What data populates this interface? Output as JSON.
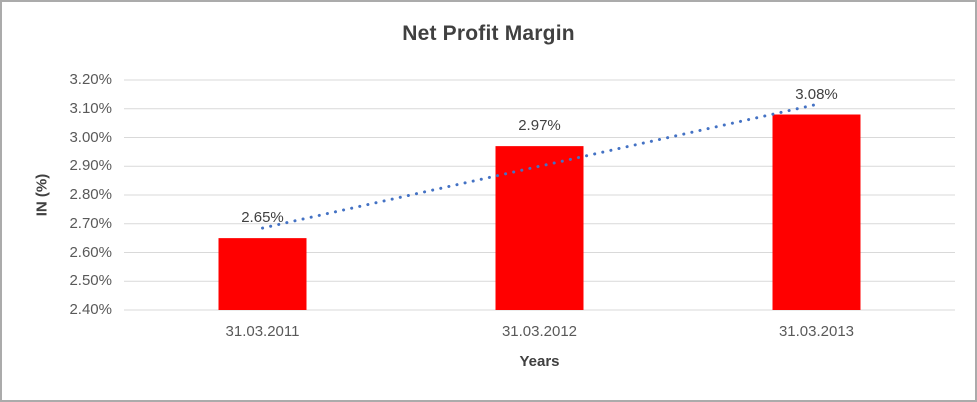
{
  "chart_data": {
    "type": "bar",
    "title": "Net Profit Margin",
    "xlabel": "Years",
    "ylabel": "IN (%)",
    "categories": [
      "31.03.2011",
      "31.03.2012",
      "31.03.2013"
    ],
    "values": [
      2.65,
      2.97,
      3.08
    ],
    "data_labels": [
      "2.65%",
      "2.97%",
      "3.08%"
    ],
    "unit": "%",
    "ylim": [
      2.4,
      3.2
    ],
    "ytick_step": 0.1,
    "y_tick_labels": [
      "3.20%",
      "3.10%",
      "3.00%",
      "2.90%",
      "2.80%",
      "2.70%",
      "2.60%",
      "2.50%",
      "2.40%"
    ],
    "grid": true,
    "legend": false,
    "bar_color": "#ff0000",
    "gridline_color": "#d9d9d9",
    "trendline": {
      "type": "linear",
      "style": "dotted",
      "color": "#4472c4",
      "endpoint_values": [
        2.685,
        3.115
      ]
    }
  }
}
